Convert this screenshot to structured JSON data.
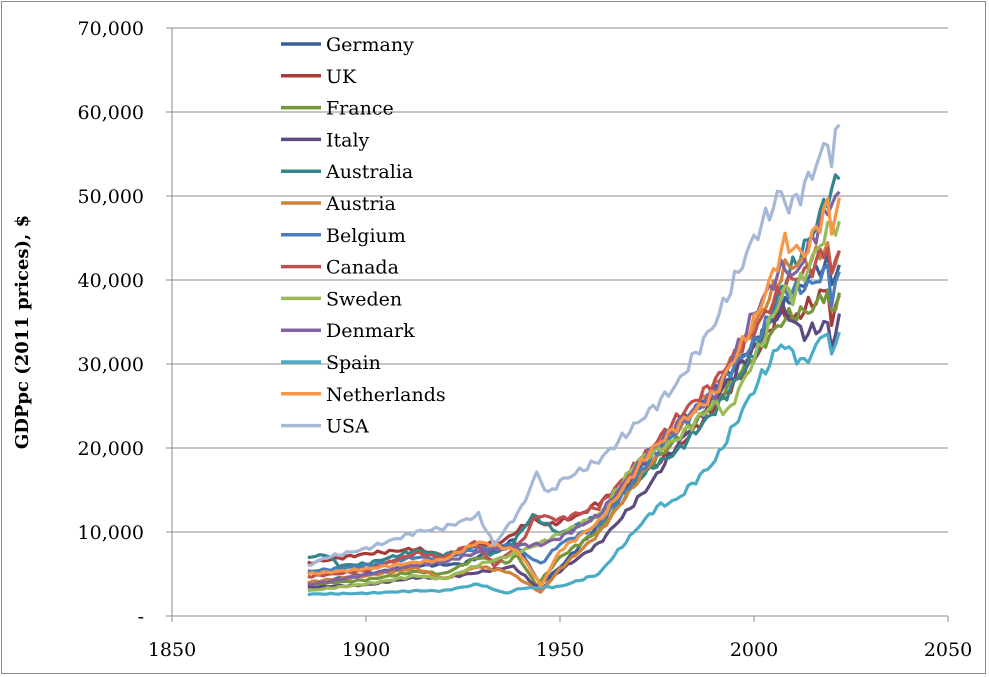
{
  "chart_data": {
    "type": "line",
    "title": "",
    "xlabel": "",
    "ylabel": "GDPpc (2011 prices), $",
    "xlim": [
      1850,
      2050
    ],
    "ylim": [
      0,
      70000
    ],
    "x_ticks": [
      1850,
      1900,
      1950,
      2000,
      2050
    ],
    "y_ticks": [
      0,
      10000,
      20000,
      30000,
      40000,
      50000,
      60000,
      70000
    ],
    "x_tick_labels": [
      "1850",
      "1900",
      "1950",
      "2000",
      "2050"
    ],
    "y_tick_labels": [
      "-",
      "10,000",
      "20,000",
      "30,000",
      "40,000",
      "50,000",
      "60,000",
      "70,000"
    ],
    "grid": "horizontal",
    "legend": "top-left",
    "series": [
      {
        "name": "Germany",
        "color": "#3a5f96",
        "points": [
          [
            1885,
            3900
          ],
          [
            1900,
            5000
          ],
          [
            1913,
            6000
          ],
          [
            1925,
            6200
          ],
          [
            1938,
            9000
          ],
          [
            1945,
            3800
          ],
          [
            1950,
            5800
          ],
          [
            1960,
            10800
          ],
          [
            1973,
            18800
          ],
          [
            1980,
            22500
          ],
          [
            1990,
            27000
          ],
          [
            2000,
            32200
          ],
          [
            2008,
            37000
          ],
          [
            2015,
            40800
          ],
          [
            2019,
            42000
          ],
          [
            2020,
            40000
          ],
          [
            2022,
            41800
          ]
        ]
      },
      {
        "name": "UK",
        "color": "#a83a37",
        "points": [
          [
            1885,
            6300
          ],
          [
            1900,
            7400
          ],
          [
            1913,
            8000
          ],
          [
            1920,
            7200
          ],
          [
            1929,
            8500
          ],
          [
            1935,
            8800
          ],
          [
            1943,
            11500
          ],
          [
            1947,
            10800
          ],
          [
            1955,
            12000
          ],
          [
            1973,
            17500
          ],
          [
            1980,
            19800
          ],
          [
            1990,
            25000
          ],
          [
            2000,
            30500
          ],
          [
            2007,
            36800
          ],
          [
            2010,
            35200
          ],
          [
            2019,
            39000
          ],
          [
            2020,
            35000
          ],
          [
            2022,
            38200
          ]
        ]
      },
      {
        "name": "France",
        "color": "#76963a",
        "points": [
          [
            1885,
            3700
          ],
          [
            1900,
            4300
          ],
          [
            1913,
            5300
          ],
          [
            1920,
            5000
          ],
          [
            1929,
            7000
          ],
          [
            1936,
            6300
          ],
          [
            1939,
            7200
          ],
          [
            1944,
            3600
          ],
          [
            1950,
            7000
          ],
          [
            1960,
            10200
          ],
          [
            1973,
            17800
          ],
          [
            1980,
            21000
          ],
          [
            1990,
            25500
          ],
          [
            2000,
            31000
          ],
          [
            2008,
            35500
          ],
          [
            2015,
            36500
          ],
          [
            2019,
            38800
          ],
          [
            2020,
            35500
          ],
          [
            2022,
            38500
          ]
        ]
      },
      {
        "name": "Italy",
        "color": "#5e4a80",
        "points": [
          [
            1885,
            3400
          ],
          [
            1900,
            3700
          ],
          [
            1913,
            4600
          ],
          [
            1920,
            4500
          ],
          [
            1929,
            5200
          ],
          [
            1938,
            5900
          ],
          [
            1945,
            3100
          ],
          [
            1950,
            5400
          ],
          [
            1960,
            8600
          ],
          [
            1973,
            15500
          ],
          [
            1980,
            20200
          ],
          [
            1990,
            26000
          ],
          [
            2000,
            31800
          ],
          [
            2007,
            36800
          ],
          [
            2013,
            33500
          ],
          [
            2019,
            34800
          ],
          [
            2020,
            32000
          ],
          [
            2022,
            36000
          ]
        ]
      },
      {
        "name": "Australia",
        "color": "#34848c",
        "points": [
          [
            1885,
            7000
          ],
          [
            1890,
            7300
          ],
          [
            1893,
            6000
          ],
          [
            1900,
            6200
          ],
          [
            1913,
            7800
          ],
          [
            1920,
            7200
          ],
          [
            1928,
            8500
          ],
          [
            1932,
            7200
          ],
          [
            1938,
            8800
          ],
          [
            1943,
            12000
          ],
          [
            1950,
            9800
          ],
          [
            1960,
            12000
          ],
          [
            1973,
            17500
          ],
          [
            1980,
            19500
          ],
          [
            1990,
            24500
          ],
          [
            2000,
            31000
          ],
          [
            2008,
            40000
          ],
          [
            2015,
            45500
          ],
          [
            2019,
            50000
          ],
          [
            2022,
            52000
          ]
        ]
      },
      {
        "name": "Austria",
        "color": "#d0813a",
        "points": [
          [
            1885,
            4000
          ],
          [
            1900,
            4800
          ],
          [
            1913,
            5700
          ],
          [
            1920,
            4400
          ],
          [
            1929,
            5900
          ],
          [
            1937,
            5200
          ],
          [
            1945,
            2800
          ],
          [
            1950,
            5600
          ],
          [
            1960,
            9800
          ],
          [
            1973,
            18000
          ],
          [
            1980,
            22000
          ],
          [
            1990,
            27500
          ],
          [
            2000,
            34500
          ],
          [
            2008,
            41500
          ],
          [
            2015,
            42500
          ],
          [
            2019,
            44000
          ],
          [
            2020,
            40500
          ],
          [
            2022,
            43500
          ]
        ]
      },
      {
        "name": "Belgium",
        "color": "#4a7ebb",
        "points": [
          [
            1885,
            5300
          ],
          [
            1900,
            6000
          ],
          [
            1913,
            7000
          ],
          [
            1920,
            6800
          ],
          [
            1929,
            8100
          ],
          [
            1939,
            8000
          ],
          [
            1945,
            6200
          ],
          [
            1950,
            8600
          ],
          [
            1960,
            10800
          ],
          [
            1973,
            18500
          ],
          [
            1980,
            22000
          ],
          [
            1990,
            27000
          ],
          [
            2000,
            32500
          ],
          [
            2008,
            38500
          ],
          [
            2015,
            39500
          ],
          [
            2019,
            41200
          ],
          [
            2020,
            38000
          ],
          [
            2022,
            41000
          ]
        ]
      },
      {
        "name": "Canada",
        "color": "#c0504d",
        "points": [
          [
            1885,
            4700
          ],
          [
            1900,
            5400
          ],
          [
            1913,
            7500
          ],
          [
            1920,
            6900
          ],
          [
            1928,
            8800
          ],
          [
            1933,
            6000
          ],
          [
            1940,
            8800
          ],
          [
            1944,
            12000
          ],
          [
            1950,
            11500
          ],
          [
            1960,
            13000
          ],
          [
            1973,
            19800
          ],
          [
            1980,
            23500
          ],
          [
            1990,
            28000
          ],
          [
            2000,
            34000
          ],
          [
            2008,
            39500
          ],
          [
            2015,
            41500
          ],
          [
            2019,
            44000
          ],
          [
            2020,
            40500
          ],
          [
            2022,
            43500
          ]
        ]
      },
      {
        "name": "Sweden",
        "color": "#9bbb59",
        "points": [
          [
            1885,
            3000
          ],
          [
            1900,
            3800
          ],
          [
            1913,
            4800
          ],
          [
            1920,
            4400
          ],
          [
            1929,
            6100
          ],
          [
            1939,
            7500
          ],
          [
            1945,
            8700
          ],
          [
            1950,
            9800
          ],
          [
            1960,
            12000
          ],
          [
            1970,
            18500
          ],
          [
            1980,
            21000
          ],
          [
            1990,
            25500
          ],
          [
            1993,
            24000
          ],
          [
            2000,
            30500
          ],
          [
            2008,
            39000
          ],
          [
            2010,
            38000
          ],
          [
            2019,
            46000
          ],
          [
            2022,
            47000
          ]
        ]
      },
      {
        "name": "Denmark",
        "color": "#8064a2",
        "points": [
          [
            1885,
            3700
          ],
          [
            1900,
            4900
          ],
          [
            1913,
            6100
          ],
          [
            1920,
            6400
          ],
          [
            1929,
            7600
          ],
          [
            1939,
            8400
          ],
          [
            1945,
            8500
          ],
          [
            1950,
            9300
          ],
          [
            1960,
            12000
          ],
          [
            1973,
            19500
          ],
          [
            1980,
            22800
          ],
          [
            1990,
            26500
          ],
          [
            2000,
            36000
          ],
          [
            2008,
            42000
          ],
          [
            2010,
            40000
          ],
          [
            2019,
            48500
          ],
          [
            2022,
            50500
          ]
        ]
      },
      {
        "name": "Spain",
        "color": "#4bacc6",
        "points": [
          [
            1885,
            2600
          ],
          [
            1900,
            2700
          ],
          [
            1913,
            3000
          ],
          [
            1920,
            3000
          ],
          [
            1929,
            3800
          ],
          [
            1936,
            2700
          ],
          [
            1940,
            3300
          ],
          [
            1950,
            3500
          ],
          [
            1960,
            5000
          ],
          [
            1970,
            10500
          ],
          [
            1975,
            13000
          ],
          [
            1980,
            13800
          ],
          [
            1990,
            18500
          ],
          [
            2000,
            27000
          ],
          [
            2007,
            32500
          ],
          [
            2013,
            30000
          ],
          [
            2019,
            34200
          ],
          [
            2020,
            30500
          ],
          [
            2022,
            33800
          ]
        ]
      },
      {
        "name": "Netherlands",
        "color": "#f79646",
        "points": [
          [
            1885,
            5000
          ],
          [
            1900,
            5600
          ],
          [
            1913,
            6400
          ],
          [
            1920,
            6700
          ],
          [
            1929,
            8800
          ],
          [
            1939,
            7800
          ],
          [
            1944,
            4500
          ],
          [
            1945,
            3500
          ],
          [
            1950,
            7800
          ],
          [
            1960,
            11200
          ],
          [
            1973,
            19500
          ],
          [
            1980,
            22500
          ],
          [
            1990,
            26500
          ],
          [
            2000,
            35000
          ],
          [
            2008,
            44500
          ],
          [
            2013,
            43000
          ],
          [
            2019,
            49000
          ],
          [
            2020,
            46000
          ],
          [
            2022,
            49800
          ]
        ]
      },
      {
        "name": "USA",
        "color": "#a5b8d7",
        "points": [
          [
            1885,
            6000
          ],
          [
            1890,
            7000
          ],
          [
            1900,
            8000
          ],
          [
            1913,
            10000
          ],
          [
            1920,
            10500
          ],
          [
            1929,
            12000
          ],
          [
            1933,
            8500
          ],
          [
            1940,
            12800
          ],
          [
            1944,
            17000
          ],
          [
            1947,
            14500
          ],
          [
            1950,
            16000
          ],
          [
            1960,
            18500
          ],
          [
            1970,
            23000
          ],
          [
            1980,
            27500
          ],
          [
            1990,
            35000
          ],
          [
            2000,
            45000
          ],
          [
            2007,
            50500
          ],
          [
            2009,
            48500
          ],
          [
            2013,
            51000
          ],
          [
            2019,
            56500
          ],
          [
            2020,
            54500
          ],
          [
            2022,
            58500
          ]
        ]
      }
    ]
  }
}
